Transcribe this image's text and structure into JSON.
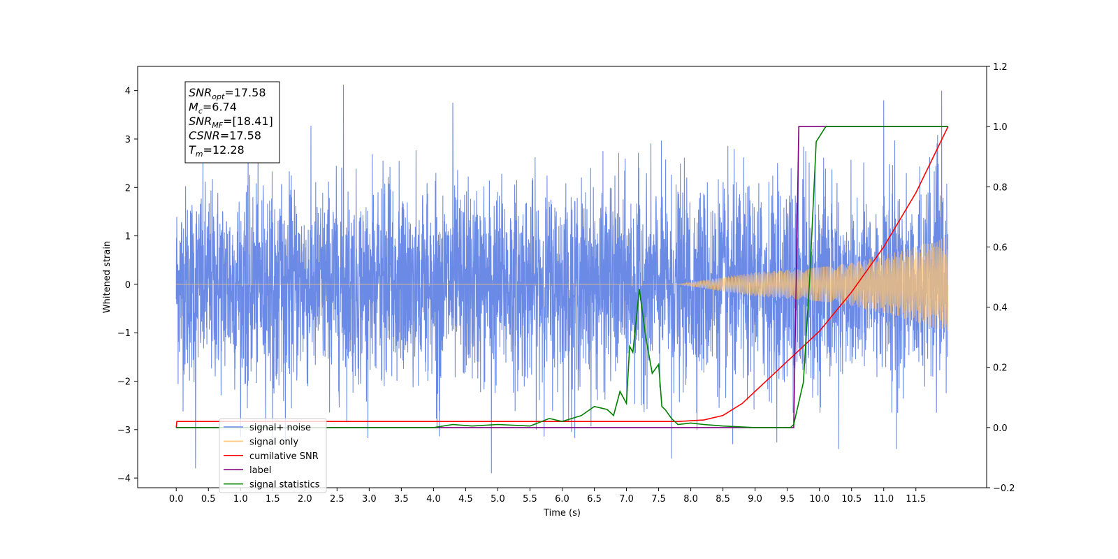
{
  "chart_data": {
    "type": "line",
    "xlabel": "Time (s)",
    "ylabel": "Whitened strain",
    "ylabel_right": "",
    "xlim": [
      -0.6,
      12.6
    ],
    "ylim": [
      -4.2,
      4.5
    ],
    "ylim_right": [
      -0.2,
      1.2
    ],
    "xticks": [
      "0.0",
      "0.5",
      "1.0",
      "1.5",
      "2.0",
      "2.5",
      "3.0",
      "3.5",
      "4.0",
      "4.5",
      "5.0",
      "5.5",
      "6.0",
      "6.5",
      "7.0",
      "7.5",
      "8.0",
      "8.5",
      "9.0",
      "9.5",
      "10.0",
      "10.5",
      "11.0",
      "11.5"
    ],
    "yticks_left": [
      "4",
      "3",
      "2",
      "1",
      "0",
      "−1",
      "−2",
      "−3",
      "−4"
    ],
    "yticks_right": [
      "1.2",
      "1.0",
      "0.8",
      "0.6",
      "0.4",
      "0.2",
      "0.0",
      "−0.2"
    ],
    "grid": false,
    "legend_position": "lower-left",
    "annotation": {
      "lines": [
        {
          "base": "SNR",
          "sub": "opt",
          "text": "=17.58"
        },
        {
          "base": "M",
          "sub": "c",
          "text": "=6.74"
        },
        {
          "base": "SNR",
          "sub": "MF",
          "text": "=[18.41]"
        },
        {
          "base": "CSNR",
          "sub": "",
          "text": "=17.58"
        },
        {
          "base": "T",
          "sub": "m",
          "text": "=12.28"
        }
      ]
    },
    "series": [
      {
        "name": "signal+ noise",
        "color": "#6b8ae6",
        "axis": "left",
        "kind": "noise",
        "x_range": [
          0,
          12.0
        ],
        "amplitude_typical": 1.0,
        "extremes": [
          [
            2.6,
            4.12
          ],
          [
            11.9,
            4.0
          ],
          [
            11.0,
            3.8
          ],
          [
            4.3,
            3.75
          ],
          [
            0.3,
            -3.8
          ],
          [
            4.9,
            -3.9
          ],
          [
            7.7,
            -3.6
          ],
          [
            8.65,
            -3.3
          ],
          [
            10.3,
            -3.4
          ],
          [
            11.2,
            -3.4
          ]
        ]
      },
      {
        "name": "signal only",
        "color": "#ffc473",
        "axis": "left",
        "kind": "chirp",
        "envelope": [
          [
            0,
            0.0
          ],
          [
            7.8,
            0.0
          ],
          [
            8.5,
            0.15
          ],
          [
            9.0,
            0.25
          ],
          [
            9.5,
            0.3
          ],
          [
            10.0,
            0.35
          ],
          [
            10.5,
            0.45
          ],
          [
            11.0,
            0.6
          ],
          [
            11.5,
            0.78
          ],
          [
            12.0,
            1.0
          ]
        ]
      },
      {
        "name": "cumilative SNR",
        "color": "#ff0000",
        "axis": "right",
        "points": [
          [
            0,
            0.0
          ],
          [
            0.01,
            0.02
          ],
          [
            7.8,
            0.02
          ],
          [
            8.2,
            0.025
          ],
          [
            8.5,
            0.04
          ],
          [
            8.8,
            0.08
          ],
          [
            9.0,
            0.12
          ],
          [
            9.5,
            0.22
          ],
          [
            10.0,
            0.32
          ],
          [
            10.5,
            0.45
          ],
          [
            11.0,
            0.6
          ],
          [
            11.5,
            0.78
          ],
          [
            12.0,
            1.0
          ]
        ]
      },
      {
        "name": "label",
        "color": "#800080",
        "axis": "right",
        "points": [
          [
            0,
            0.0
          ],
          [
            9.6,
            0.0
          ],
          [
            9.68,
            1.0
          ],
          [
            12.0,
            1.0
          ]
        ]
      },
      {
        "name": "signal statistics",
        "color": "#008000",
        "axis": "right",
        "points": [
          [
            0,
            0.0
          ],
          [
            4.0,
            0.0
          ],
          [
            4.3,
            0.01
          ],
          [
            4.6,
            0.005
          ],
          [
            5.0,
            0.01
          ],
          [
            5.5,
            0.005
          ],
          [
            5.8,
            0.03
          ],
          [
            6.0,
            0.02
          ],
          [
            6.3,
            0.04
          ],
          [
            6.5,
            0.07
          ],
          [
            6.7,
            0.06
          ],
          [
            6.8,
            0.04
          ],
          [
            6.9,
            0.12
          ],
          [
            7.0,
            0.08
          ],
          [
            7.05,
            0.27
          ],
          [
            7.1,
            0.25
          ],
          [
            7.2,
            0.46
          ],
          [
            7.3,
            0.3
          ],
          [
            7.4,
            0.18
          ],
          [
            7.5,
            0.21
          ],
          [
            7.55,
            0.07
          ],
          [
            7.6,
            0.06
          ],
          [
            7.7,
            0.03
          ],
          [
            7.8,
            0.01
          ],
          [
            8.0,
            0.015
          ],
          [
            8.2,
            0.01
          ],
          [
            8.5,
            0.005
          ],
          [
            9.0,
            0.0
          ],
          [
            9.55,
            0.0
          ],
          [
            9.6,
            0.01
          ],
          [
            9.75,
            0.15
          ],
          [
            9.85,
            0.5
          ],
          [
            9.95,
            0.95
          ],
          [
            10.1,
            1.0
          ],
          [
            12.0,
            1.0
          ]
        ]
      }
    ]
  }
}
